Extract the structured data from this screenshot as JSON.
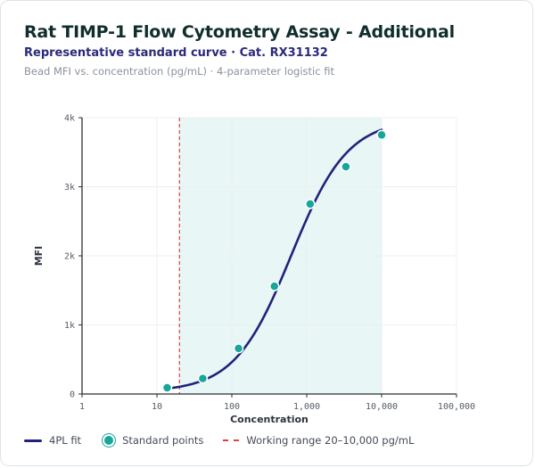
{
  "header": {
    "title": "Rat TIMP-1 Flow Cytometry Assay - Additional",
    "subtitle": "Representative standard curve · Cat. RX31132",
    "caption": "Bead MFI vs. concentration (pg/mL) · 4-parameter logistic fit"
  },
  "colors": {
    "fit_line": "#23227a",
    "points": "#17a69a",
    "working_range_fill": "#e8f6f6",
    "lloq_line": "#d9473c",
    "grid": "#eceff2"
  },
  "chart_data": {
    "type": "scatter",
    "xlabel": "Concentration",
    "ylabel": "MFI",
    "x_scale": "log",
    "xlim": [
      1,
      100000
    ],
    "ylim": [
      0,
      4000
    ],
    "x_ticks": [
      1,
      10,
      100,
      1000,
      10000,
      100000
    ],
    "x_tick_labels": [
      "1",
      "10",
      "100",
      "1,000",
      "10,000",
      "100,000"
    ],
    "y_ticks": [
      0,
      1000,
      2000,
      3000,
      4000
    ],
    "y_tick_labels": [
      "0",
      "1k",
      "2k",
      "3k",
      "4k"
    ],
    "grid": true,
    "legend_position": "bottom",
    "series": [
      {
        "name": "Standard points",
        "kind": "points",
        "x": [
          13.7,
          41,
          123,
          370,
          1111,
          3333,
          10000
        ],
        "y": [
          90,
          225,
          660,
          1560,
          2750,
          3290,
          3750
        ]
      },
      {
        "name": "4PL fit",
        "kind": "line",
        "x_range": [
          13.7,
          10000
        ],
        "params": {
          "bottom": 30,
          "top": 3980,
          "ec50": 620,
          "hill": 1.15
        }
      }
    ],
    "working_range": {
      "label": "Working range 20–10,000 pg/mL",
      "x": [
        20,
        10000
      ]
    }
  },
  "legend": {
    "items": [
      "4PL fit",
      "Standard points",
      "Working range 20–10,000 pg/mL"
    ]
  }
}
